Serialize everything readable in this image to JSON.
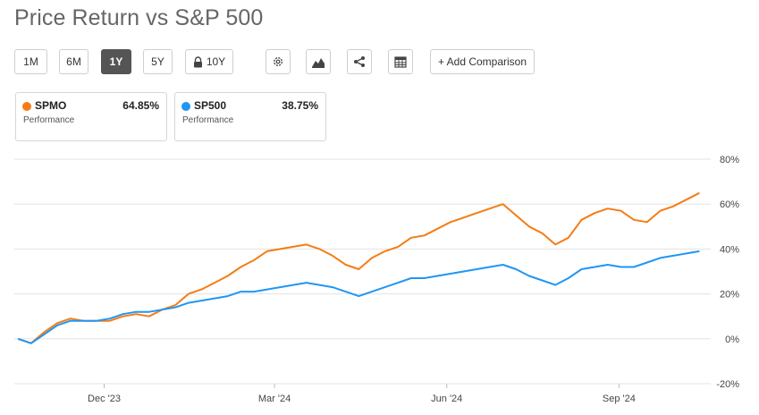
{
  "title": "Price Return vs S&P 500",
  "toolbar": {
    "ranges": [
      "1M",
      "6M",
      "1Y",
      "5Y",
      "10Y"
    ],
    "active_range": "1Y",
    "add_comparison": "+ Add Comparison",
    "icons": [
      "lock-icon",
      "gear-icon",
      "mountain-chart-icon",
      "share-icon",
      "table-icon"
    ]
  },
  "cards": [
    {
      "ticker": "SPMO",
      "value": "64.85%",
      "subtitle": "Performance",
      "color": "#f57c14"
    },
    {
      "ticker": "SP500",
      "value": "38.75%",
      "subtitle": "Performance",
      "color": "#2196f3"
    }
  ],
  "chart_data": {
    "type": "line",
    "x_labels": [
      "Dec '23",
      "Mar '24",
      "Jun '24",
      "Sep '24"
    ],
    "y_ticks": [
      "80%",
      "60%",
      "40%",
      "20%",
      "0%",
      "-20%"
    ],
    "ylim": [
      -20,
      80
    ],
    "grid": true,
    "series": [
      {
        "name": "SPMO",
        "color": "#f57c14",
        "x": [
          "2023-10-16",
          "2023-10-23",
          "2023-10-30",
          "2023-11-06",
          "2023-11-13",
          "2023-11-20",
          "2023-11-27",
          "2023-12-04",
          "2023-12-11",
          "2023-12-18",
          "2023-12-25",
          "2024-01-01",
          "2024-01-08",
          "2024-01-15",
          "2024-01-22",
          "2024-01-29",
          "2024-02-05",
          "2024-02-12",
          "2024-02-19",
          "2024-02-26",
          "2024-03-04",
          "2024-03-11",
          "2024-03-18",
          "2024-03-25",
          "2024-04-01",
          "2024-04-08",
          "2024-04-15",
          "2024-04-22",
          "2024-04-29",
          "2024-05-06",
          "2024-05-13",
          "2024-05-20",
          "2024-05-27",
          "2024-06-03",
          "2024-06-10",
          "2024-06-17",
          "2024-06-24",
          "2024-07-01",
          "2024-07-08",
          "2024-07-15",
          "2024-07-22",
          "2024-07-29",
          "2024-08-05",
          "2024-08-12",
          "2024-08-19",
          "2024-08-26",
          "2024-09-02",
          "2024-09-09",
          "2024-09-16",
          "2024-09-23",
          "2024-09-30",
          "2024-10-07",
          "2024-10-14"
        ],
        "values": [
          0,
          -2,
          3,
          7,
          9,
          8,
          8,
          8,
          10,
          11,
          10,
          13,
          15,
          20,
          22,
          25,
          28,
          32,
          35,
          39,
          40,
          41,
          42,
          40,
          37,
          33,
          31,
          36,
          39,
          41,
          45,
          46,
          49,
          52,
          54,
          56,
          58,
          60,
          55,
          50,
          47,
          42,
          45,
          53,
          56,
          58,
          57,
          53,
          52,
          57,
          59,
          62,
          65
        ]
      },
      {
        "name": "SP500",
        "color": "#2196f3",
        "x": [
          "2023-10-16",
          "2023-10-23",
          "2023-10-30",
          "2023-11-06",
          "2023-11-13",
          "2023-11-20",
          "2023-11-27",
          "2023-12-04",
          "2023-12-11",
          "2023-12-18",
          "2023-12-25",
          "2024-01-01",
          "2024-01-08",
          "2024-01-15",
          "2024-01-22",
          "2024-01-29",
          "2024-02-05",
          "2024-02-12",
          "2024-02-19",
          "2024-02-26",
          "2024-03-04",
          "2024-03-11",
          "2024-03-18",
          "2024-03-25",
          "2024-04-01",
          "2024-04-08",
          "2024-04-15",
          "2024-04-22",
          "2024-04-29",
          "2024-05-06",
          "2024-05-13",
          "2024-05-20",
          "2024-05-27",
          "2024-06-03",
          "2024-06-10",
          "2024-06-17",
          "2024-06-24",
          "2024-07-01",
          "2024-07-08",
          "2024-07-15",
          "2024-07-22",
          "2024-07-29",
          "2024-08-05",
          "2024-08-12",
          "2024-08-19",
          "2024-08-26",
          "2024-09-02",
          "2024-09-09",
          "2024-09-16",
          "2024-09-23",
          "2024-09-30",
          "2024-10-07",
          "2024-10-14"
        ],
        "values": [
          0,
          -2,
          2,
          6,
          8,
          8,
          8,
          9,
          11,
          12,
          12,
          13,
          14,
          16,
          17,
          18,
          19,
          21,
          21,
          22,
          23,
          24,
          25,
          24,
          23,
          21,
          19,
          21,
          23,
          25,
          27,
          27,
          28,
          29,
          30,
          31,
          32,
          33,
          31,
          28,
          26,
          24,
          27,
          31,
          32,
          33,
          32,
          32,
          34,
          36,
          37,
          38,
          39
        ]
      }
    ]
  }
}
